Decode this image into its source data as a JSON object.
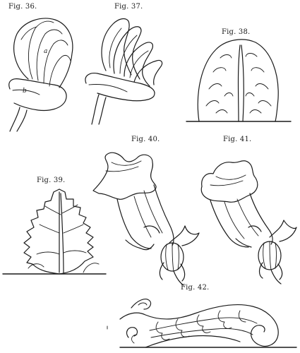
{
  "figures": {
    "fig36": {
      "caption": "Fig. 36.",
      "labels": [
        "a",
        "b"
      ]
    },
    "fig37": {
      "caption": "Fig. 37."
    },
    "fig38": {
      "caption": "Fig. 38."
    },
    "fig39": {
      "caption": "Fig. 39."
    },
    "fig40": {
      "caption": "Fig. 40."
    },
    "fig41": {
      "caption": "Fig. 41."
    },
    "fig42": {
      "caption": "Fig. 42."
    }
  },
  "colors": {
    "ink": "#1a1a1a",
    "paper": "#ffffff"
  }
}
